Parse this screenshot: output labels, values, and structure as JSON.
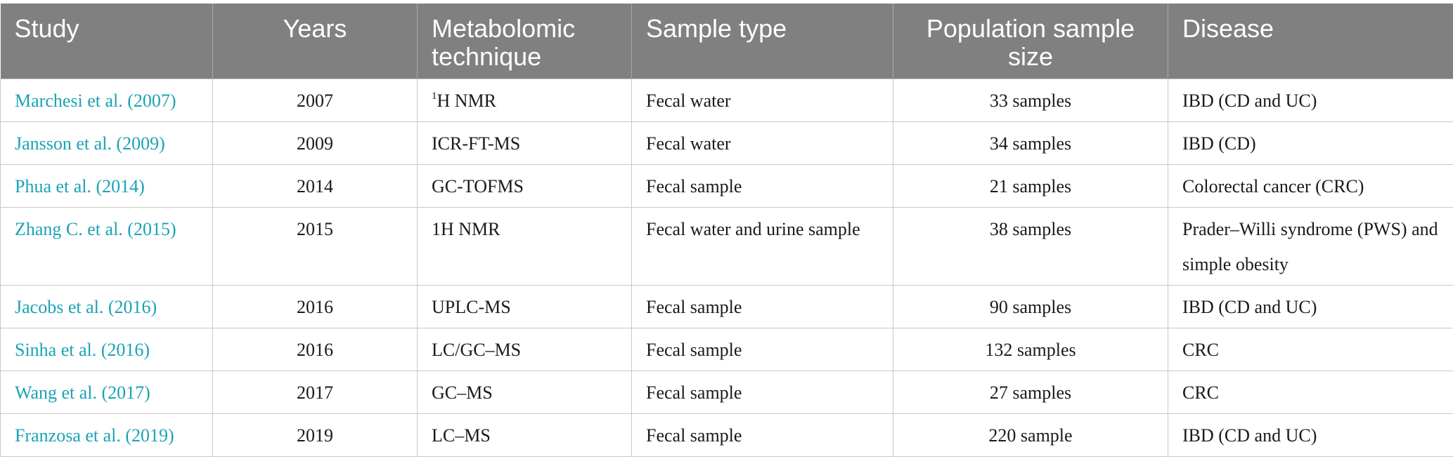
{
  "headers": [
    "Study",
    "Years",
    "Metabolomic technique",
    "Sample type",
    "Population sample size",
    "Disease"
  ],
  "colors": {
    "header_bg": "#808080",
    "header_text": "#ffffff",
    "link": "#1aa3b5",
    "border": "#c8c8c8"
  },
  "rows": [
    {
      "study": "Marchesi et al. (2007)",
      "year": "2007",
      "technique_sup": "1",
      "technique": "H NMR",
      "sample": "Fecal water",
      "size": "33 samples",
      "disease": "IBD (CD and UC)"
    },
    {
      "study": "Jansson et al. (2009)",
      "year": "2009",
      "technique_sup": "",
      "technique": "ICR-FT-MS",
      "sample": "Fecal water",
      "size": "34 samples",
      "disease": "IBD (CD)"
    },
    {
      "study": "Phua et al. (2014)",
      "year": "2014",
      "technique_sup": "",
      "technique": "GC-TOFMS",
      "sample": "Fecal sample",
      "size": "21 samples",
      "disease": "Colorectal cancer (CRC)"
    },
    {
      "study": "Zhang C. et al. (2015)",
      "year": "2015",
      "technique_sup": "",
      "technique": "1H NMR",
      "sample": "Fecal water and urine sample",
      "size": "38 samples",
      "disease": "Prader–Willi syndrome (PWS) and simple obesity"
    },
    {
      "study": "Jacobs et al. (2016)",
      "year": "2016",
      "technique_sup": "",
      "technique": "UPLC-MS",
      "sample": "Fecal sample",
      "size": "90 samples",
      "disease": "IBD (CD and UC)"
    },
    {
      "study": "Sinha et al. (2016)",
      "year": "2016",
      "technique_sup": "",
      "technique": "LC/GC–MS",
      "sample": "Fecal sample",
      "size": "132 samples",
      "disease": "CRC"
    },
    {
      "study": "Wang et al. (2017)",
      "year": "2017",
      "technique_sup": "",
      "technique": "GC–MS",
      "sample": "Fecal sample",
      "size": "27 samples",
      "disease": "CRC"
    },
    {
      "study": "Franzosa et al. (2019)",
      "year": "2019",
      "technique_sup": "",
      "technique": "LC–MS",
      "sample": "Fecal sample",
      "size": "220 sample",
      "disease": "IBD (CD and UC)"
    }
  ]
}
